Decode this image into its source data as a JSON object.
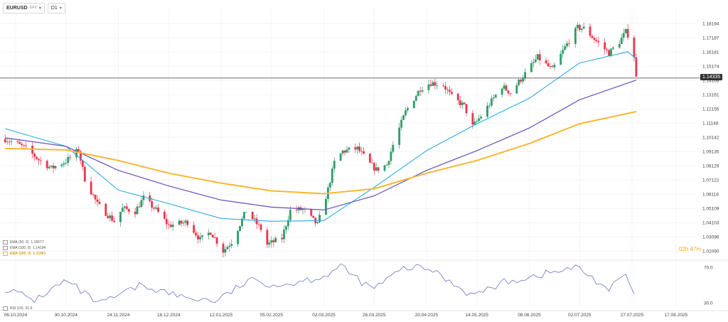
{
  "header": {
    "symbol": "EURUSD",
    "source": "GFX",
    "timeframe": "D1"
  },
  "timer": "02h 47m",
  "legend": [
    {
      "label": "EMA (50, 0)",
      "value": "1.15677",
      "color": "#29abe2"
    },
    {
      "label": "EMA (100, 0)",
      "value": "1.14194",
      "color": "#6b4fbb"
    },
    {
      "label": "EMA (200, 0)",
      "value": "1.11961",
      "color": "#f7b731"
    }
  ],
  "rsi_legend": {
    "label": "RSI (14)",
    "value": "31.6"
  },
  "current_price": "1.14335",
  "colors": {
    "up": "#2e9e6b",
    "down": "#e53950",
    "rsi": "#6a72c8",
    "grid": "#ececec",
    "axis_text": "#444"
  },
  "chart_data": {
    "type": "candlestick",
    "price_axis": {
      "ticks": [
        "1.18194",
        "1.17187",
        "1.16181",
        "1.15174",
        "1.14168",
        "1.13161",
        "1.12155",
        "1.11148",
        "1.10142",
        "1.09135",
        "1.08129",
        "1.07122",
        "1.06116",
        "1.05109",
        "1.04103",
        "1.03096",
        "1.02090"
      ],
      "range": [
        1.0195,
        1.1875
      ]
    },
    "x_axis_labels": [
      "06.10.2024",
      "30.10.2024",
      "24.11.2024",
      "18.12.2024",
      "12.01.2025",
      "05.02.2025",
      "02.03.2025",
      "26.03.2025",
      "20.04.2025",
      "14.05.2025",
      "08.06.2025",
      "02.07.2025",
      "27.07.2025",
      "17.08.2025"
    ],
    "x_axis_dates": [
      "2024-10-06",
      "2024-10-30",
      "2024-11-24",
      "2024-12-18",
      "2025-01-12",
      "2025-02-05",
      "2025-03-02",
      "2025-03-26",
      "2025-04-20",
      "2025-05-14",
      "2025-06-08",
      "2025-07-02",
      "2025-07-27",
      "2025-08-17"
    ],
    "close_path": [
      [
        "2024-10-01",
        1.1002
      ],
      [
        "2024-10-07",
        1.0965
      ],
      [
        "2024-10-11",
        1.0935
      ],
      [
        "2024-10-17",
        1.0855
      ],
      [
        "2024-10-23",
        1.0795
      ],
      [
        "2024-10-30",
        1.0845
      ],
      [
        "2024-11-05",
        1.0925
      ],
      [
        "2024-11-08",
        1.072
      ],
      [
        "2024-11-14",
        1.054
      ],
      [
        "2024-11-22",
        1.042
      ],
      [
        "2024-11-26",
        1.051
      ],
      [
        "2024-12-02",
        1.049
      ],
      [
        "2024-12-06",
        1.0585
      ],
      [
        "2024-12-12",
        1.05
      ],
      [
        "2024-12-18",
        1.039
      ],
      [
        "2024-12-27",
        1.0415
      ],
      [
        "2025-01-02",
        1.029
      ],
      [
        "2025-01-07",
        1.0345
      ],
      [
        "2025-01-13",
        1.021
      ],
      [
        "2025-01-17",
        1.0275
      ],
      [
        "2025-01-24",
        1.0495
      ],
      [
        "2025-01-31",
        1.0365
      ],
      [
        "2025-02-03",
        1.0255
      ],
      [
        "2025-02-10",
        1.03
      ],
      [
        "2025-02-14",
        1.0495
      ],
      [
        "2025-02-20",
        1.0505
      ],
      [
        "2025-02-27",
        1.0395
      ],
      [
        "2025-03-04",
        1.0645
      ],
      [
        "2025-03-07",
        1.0835
      ],
      [
        "2025-03-11",
        1.0915
      ],
      [
        "2025-03-18",
        1.0935
      ],
      [
        "2025-03-24",
        1.0825
      ],
      [
        "2025-03-27",
        1.0785
      ],
      [
        "2025-04-01",
        1.082
      ],
      [
        "2025-04-04",
        1.096
      ],
      [
        "2025-04-10",
        1.1195
      ],
      [
        "2025-04-17",
        1.136
      ],
      [
        "2025-04-22",
        1.14
      ],
      [
        "2025-04-28",
        1.1385
      ],
      [
        "2025-05-02",
        1.13
      ],
      [
        "2025-05-08",
        1.1235
      ],
      [
        "2025-05-12",
        1.109
      ],
      [
        "2025-05-16",
        1.1165
      ],
      [
        "2025-05-26",
        1.1375
      ],
      [
        "2025-05-30",
        1.133
      ],
      [
        "2025-06-05",
        1.1445
      ],
      [
        "2025-06-12",
        1.158
      ],
      [
        "2025-06-19",
        1.149
      ],
      [
        "2025-06-25",
        1.165
      ],
      [
        "2025-07-01",
        1.179
      ],
      [
        "2025-07-04",
        1.1785
      ],
      [
        "2025-07-10",
        1.1695
      ],
      [
        "2025-07-16",
        1.161
      ],
      [
        "2025-07-21",
        1.169
      ],
      [
        "2025-07-24",
        1.176
      ],
      [
        "2025-07-25",
        1.174
      ],
      [
        "2025-07-28",
        1.159
      ],
      [
        "2025-07-29",
        1.1433
      ]
    ],
    "series": [
      {
        "name": "EMA (50, 0)",
        "points": [
          [
            "2024-10-01",
            1.1075
          ],
          [
            "2024-10-30",
            1.095
          ],
          [
            "2024-11-24",
            1.064
          ],
          [
            "2024-12-18",
            1.0545
          ],
          [
            "2025-01-12",
            1.044
          ],
          [
            "2025-02-05",
            1.042
          ],
          [
            "2025-03-02",
            1.0425
          ],
          [
            "2025-03-26",
            1.066
          ],
          [
            "2025-04-20",
            1.092
          ],
          [
            "2025-05-14",
            1.111
          ],
          [
            "2025-06-08",
            1.129
          ],
          [
            "2025-07-02",
            1.154
          ],
          [
            "2025-07-25",
            1.162
          ],
          [
            "2025-07-29",
            1.1568
          ]
        ]
      },
      {
        "name": "EMA (100, 0)",
        "points": [
          [
            "2024-10-01",
            1.101
          ],
          [
            "2024-10-30",
            1.095
          ],
          [
            "2024-11-24",
            1.078
          ],
          [
            "2024-12-18",
            1.067
          ],
          [
            "2025-01-12",
            1.057
          ],
          [
            "2025-02-05",
            1.052
          ],
          [
            "2025-03-02",
            1.05
          ],
          [
            "2025-03-26",
            1.06
          ],
          [
            "2025-04-20",
            1.078
          ],
          [
            "2025-05-14",
            1.092
          ],
          [
            "2025-06-08",
            1.108
          ],
          [
            "2025-07-02",
            1.128
          ],
          [
            "2025-07-29",
            1.1419
          ]
        ]
      },
      {
        "name": "EMA (200, 0)",
        "points": [
          [
            "2024-10-01",
            1.0935
          ],
          [
            "2024-10-30",
            1.0925
          ],
          [
            "2024-11-24",
            1.085
          ],
          [
            "2024-12-18",
            1.076
          ],
          [
            "2025-01-12",
            1.069
          ],
          [
            "2025-02-05",
            1.0635
          ],
          [
            "2025-03-02",
            1.0615
          ],
          [
            "2025-03-26",
            1.065
          ],
          [
            "2025-04-20",
            1.076
          ],
          [
            "2025-05-14",
            1.085
          ],
          [
            "2025-06-08",
            1.097
          ],
          [
            "2025-07-02",
            1.111
          ],
          [
            "2025-07-29",
            1.1196
          ]
        ]
      }
    ],
    "rsi": {
      "ticks": [
        "70.0",
        "30.0"
      ],
      "range": [
        25,
        75
      ],
      "points": [
        [
          "2024-10-01",
          46
        ],
        [
          "2024-10-15",
          33
        ],
        [
          "2024-10-30",
          55
        ],
        [
          "2024-11-15",
          28
        ],
        [
          "2024-12-05",
          50
        ],
        [
          "2024-12-25",
          36
        ],
        [
          "2025-01-10",
          32
        ],
        [
          "2025-01-25",
          55
        ],
        [
          "2025-02-10",
          50
        ],
        [
          "2025-03-02",
          60
        ],
        [
          "2025-03-10",
          71
        ],
        [
          "2025-03-25",
          45
        ],
        [
          "2025-04-10",
          70
        ],
        [
          "2025-04-22",
          68
        ],
        [
          "2025-05-12",
          38
        ],
        [
          "2025-05-28",
          54
        ],
        [
          "2025-06-10",
          60
        ],
        [
          "2025-07-01",
          70
        ],
        [
          "2025-07-16",
          45
        ],
        [
          "2025-07-24",
          62
        ],
        [
          "2025-07-29",
          32
        ]
      ]
    }
  }
}
